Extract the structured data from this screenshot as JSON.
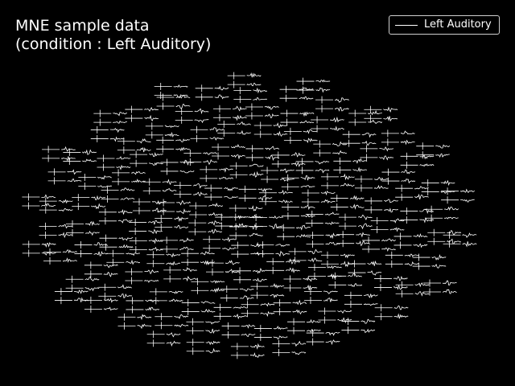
{
  "chart_data": {
    "type": "line",
    "title": "MNE sample data\n(condition : Left Auditory)",
    "legend": {
      "entries": [
        "Left Auditory"
      ],
      "placement": "top-right",
      "line_color": "#ffffff"
    },
    "background_color": "#000000",
    "trace_color": "#ffffff",
    "series": [
      {
        "name": "Left Auditory"
      }
    ],
    "layout": "sensor topography of small evoked-response traces",
    "grid": false,
    "xlabel": "",
    "ylabel": ""
  }
}
